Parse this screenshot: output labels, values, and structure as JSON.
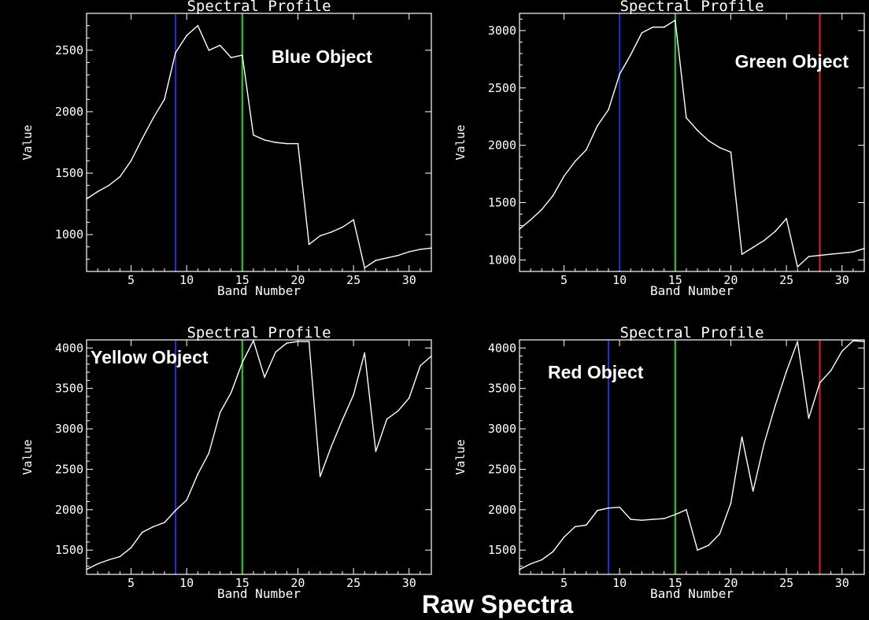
{
  "figure_caption": "Raw Spectra",
  "colors": {
    "background": "#000000",
    "foreground": "#ffffff",
    "blue_marker": "#1f2fd8",
    "green_marker": "#1fd81f",
    "red_marker": "#e02020"
  },
  "chart_data": [
    {
      "type": "line",
      "title": "Spectral Profile",
      "annotation": "Blue Object",
      "xlabel": "Band Number",
      "ylabel": "Value",
      "xlim": [
        1,
        32
      ],
      "ylim": [
        700,
        2800
      ],
      "xticks": [
        5,
        10,
        15,
        20,
        25,
        30
      ],
      "yticks": [
        1000,
        1500,
        2000,
        2500
      ],
      "x": [
        1,
        2,
        3,
        4,
        5,
        6,
        7,
        8,
        9,
        10,
        11,
        12,
        13,
        14,
        15,
        16,
        17,
        18,
        19,
        20,
        21,
        22,
        23,
        24,
        25,
        26,
        27,
        28,
        29,
        30,
        31,
        32
      ],
      "values": [
        1290,
        1350,
        1400,
        1470,
        1600,
        1780,
        1950,
        2100,
        2480,
        2620,
        2700,
        2500,
        2540,
        2440,
        2460,
        1810,
        1770,
        1750,
        1740,
        1740,
        920,
        990,
        1020,
        1060,
        1120,
        730,
        790,
        810,
        830,
        860,
        880,
        890
      ],
      "markers": [
        {
          "x": 9,
          "color": "blue"
        },
        {
          "x": 15,
          "color": "green"
        }
      ]
    },
    {
      "type": "line",
      "title": "Spectral Profile",
      "annotation": "Green Object",
      "xlabel": "Band Number",
      "ylabel": "Value",
      "xlim": [
        1,
        32
      ],
      "ylim": [
        900,
        3150
      ],
      "xticks": [
        5,
        10,
        15,
        20,
        25,
        30
      ],
      "yticks": [
        1000,
        1500,
        2000,
        2500,
        3000
      ],
      "x": [
        1,
        2,
        3,
        4,
        5,
        6,
        7,
        8,
        9,
        10,
        11,
        12,
        13,
        14,
        15,
        16,
        17,
        18,
        19,
        20,
        21,
        22,
        23,
        24,
        25,
        26,
        27,
        28,
        29,
        30,
        31,
        32
      ],
      "values": [
        1270,
        1350,
        1440,
        1560,
        1730,
        1860,
        1960,
        2170,
        2310,
        2620,
        2790,
        2980,
        3030,
        3030,
        3090,
        2240,
        2130,
        2040,
        1980,
        1940,
        1050,
        1110,
        1170,
        1250,
        1360,
        940,
        1030,
        1040,
        1050,
        1060,
        1070,
        1100
      ],
      "markers": [
        {
          "x": 10,
          "color": "blue"
        },
        {
          "x": 15,
          "color": "green"
        },
        {
          "x": 28,
          "color": "red"
        }
      ]
    },
    {
      "type": "line",
      "title": "Spectral Profile",
      "annotation": "Yellow Object",
      "xlabel": "Band Number",
      "ylabel": "Value",
      "xlim": [
        1,
        32
      ],
      "ylim": [
        1200,
        4100
      ],
      "xticks": [
        5,
        10,
        15,
        20,
        25,
        30
      ],
      "yticks": [
        1500,
        2000,
        2500,
        3000,
        3500,
        4000
      ],
      "x": [
        1,
        2,
        3,
        4,
        5,
        6,
        7,
        8,
        9,
        10,
        11,
        12,
        13,
        14,
        15,
        16,
        17,
        18,
        19,
        20,
        21,
        22,
        23,
        24,
        25,
        26,
        27,
        28,
        29,
        30,
        31,
        32
      ],
      "values": [
        1260,
        1330,
        1380,
        1420,
        1530,
        1720,
        1790,
        1840,
        1990,
        2120,
        2440,
        2700,
        3200,
        3450,
        3820,
        4090,
        3640,
        3950,
        4060,
        4080,
        4080,
        2410,
        2780,
        3110,
        3420,
        3940,
        2720,
        3120,
        3220,
        3380,
        3780,
        3900
      ],
      "markers": [
        {
          "x": 9,
          "color": "blue"
        },
        {
          "x": 15,
          "color": "green"
        }
      ]
    },
    {
      "type": "line",
      "title": "Spectral Profile",
      "annotation": "Red Object",
      "xlabel": "Band Number",
      "ylabel": "Value",
      "xlim": [
        1,
        32
      ],
      "ylim": [
        1200,
        4100
      ],
      "xticks": [
        5,
        10,
        15,
        20,
        25,
        30
      ],
      "yticks": [
        1500,
        2000,
        2500,
        3000,
        3500,
        4000
      ],
      "x": [
        1,
        2,
        3,
        4,
        5,
        6,
        7,
        8,
        9,
        10,
        11,
        12,
        13,
        14,
        15,
        16,
        17,
        18,
        19,
        20,
        21,
        22,
        23,
        24,
        25,
        26,
        27,
        28,
        29,
        30,
        31,
        32
      ],
      "values": [
        1260,
        1330,
        1380,
        1480,
        1660,
        1790,
        1810,
        1990,
        2020,
        2030,
        1880,
        1870,
        1880,
        1890,
        1940,
        2000,
        1500,
        1560,
        1700,
        2080,
        2900,
        2230,
        2820,
        3290,
        3710,
        4080,
        3130,
        3570,
        3720,
        3960,
        4090,
        4080
      ],
      "markers": [
        {
          "x": 9,
          "color": "blue"
        },
        {
          "x": 15,
          "color": "green"
        },
        {
          "x": 28,
          "color": "red"
        }
      ]
    }
  ]
}
